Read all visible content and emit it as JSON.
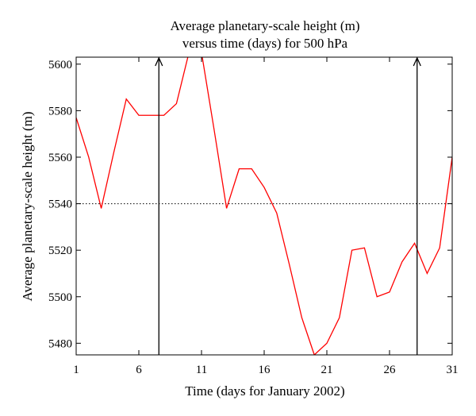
{
  "chart_data": {
    "type": "line",
    "title_lines": [
      "Average planetary-scale height (m)",
      "versus time (days) for 500 hPa"
    ],
    "xlabel": "Time (days for January 2002)",
    "ylabel": "Average planetary-scale height (m)",
    "xlim": [
      1,
      31
    ],
    "ylim": [
      5475,
      5603
    ],
    "xticks": [
      1,
      6,
      11,
      16,
      21,
      26,
      31
    ],
    "yticks": [
      5480,
      5500,
      5520,
      5540,
      5560,
      5580,
      5600
    ],
    "x_tick_labels": [
      "1",
      "6",
      "11",
      "16",
      "21",
      "26",
      "31"
    ],
    "y_tick_labels": [
      "5480",
      "5500",
      "5520",
      "5540",
      "5560",
      "5580",
      "5600"
    ],
    "grid": false,
    "series": [
      {
        "color": "#ff0000",
        "x": [
          1,
          2,
          3,
          4,
          5,
          6,
          7,
          8,
          9,
          10,
          11,
          12,
          13,
          14,
          15,
          16,
          17,
          18,
          19,
          20,
          21,
          22,
          23,
          24,
          25,
          26,
          27,
          28,
          29,
          30,
          31
        ],
        "y": [
          5577,
          5560,
          5538,
          5562,
          5585,
          5578,
          5578,
          5578,
          5583,
          5605,
          5605,
          5572,
          5538,
          5555,
          5555,
          5547,
          5536,
          5514,
          5491,
          5475,
          5480,
          5491,
          5520,
          5521,
          5500,
          5502,
          5515,
          5523,
          5510,
          5521,
          5560
        ]
      }
    ],
    "reference_line": {
      "y": 5540,
      "style": "dotted",
      "color": "#000000"
    },
    "arrows": [
      {
        "x": 7.6,
        "color": "#000000"
      },
      {
        "x": 28.2,
        "color": "#000000"
      }
    ]
  }
}
